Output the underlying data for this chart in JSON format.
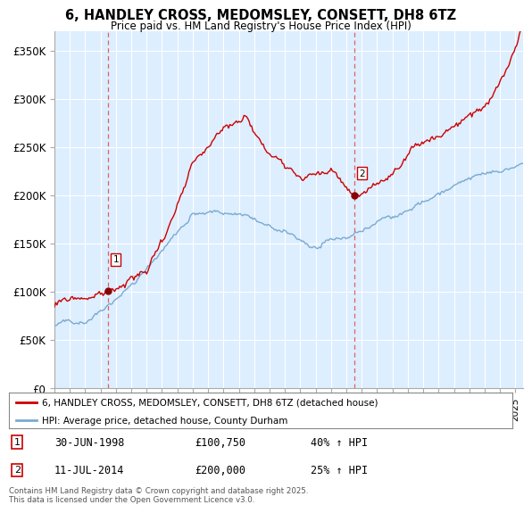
{
  "title": "6, HANDLEY CROSS, MEDOMSLEY, CONSETT, DH8 6TZ",
  "subtitle": "Price paid vs. HM Land Registry's House Price Index (HPI)",
  "ylabel_ticks": [
    "£0",
    "£50K",
    "£100K",
    "£150K",
    "£200K",
    "£250K",
    "£300K",
    "£350K"
  ],
  "ytick_values": [
    0,
    50000,
    100000,
    150000,
    200000,
    250000,
    300000,
    350000
  ],
  "ylim": [
    0,
    370000
  ],
  "xlim_start": 1995.0,
  "xlim_end": 2025.5,
  "sale1_x": 1998.5,
  "sale1_y": 100750,
  "sale1_label": "1",
  "sale1_date": "30-JUN-1998",
  "sale1_price": "£100,750",
  "sale1_hpi": "40% ↑ HPI",
  "sale2_x": 2014.53,
  "sale2_y": 200000,
  "sale2_label": "2",
  "sale2_date": "11-JUL-2014",
  "sale2_price": "£200,000",
  "sale2_hpi": "25% ↑ HPI",
  "line1_color": "#cc0000",
  "line2_color": "#7aaad0",
  "vline_color": "#e06060",
  "dot_color": "#880000",
  "legend1_label": "6, HANDLEY CROSS, MEDOMSLEY, CONSETT, DH8 6TZ (detached house)",
  "legend2_label": "HPI: Average price, detached house, County Durham",
  "footer": "Contains HM Land Registry data © Crown copyright and database right 2025.\nThis data is licensed under the Open Government Licence v3.0.",
  "background_color": "#ffffff",
  "plot_bg_color": "#ddeeff",
  "grid_color": "#ffffff"
}
